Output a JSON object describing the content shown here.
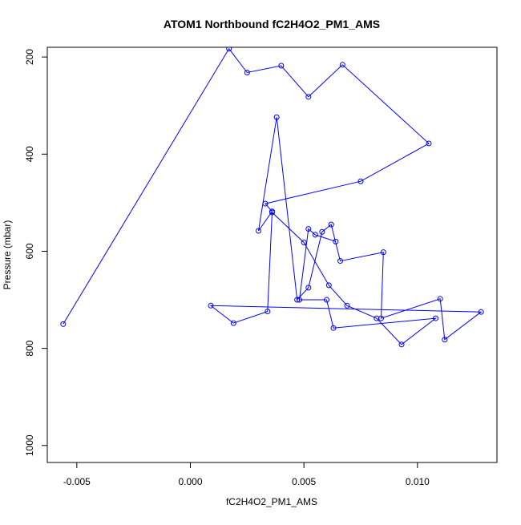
{
  "chart_data": {
    "type": "line",
    "title": "ATOM1 Northbound fC2H4O2_PM1_AMS",
    "xlabel": "fC2H4O2_PM1_AMS",
    "ylabel": "Pressure (mbar)",
    "xlim": [
      -0.0063,
      0.0135
    ],
    "ylim": [
      1035,
      180
    ],
    "y_reversed": true,
    "x_ticks": [
      -0.005,
      0.0,
      0.005,
      0.01
    ],
    "x_tick_labels": [
      "-0.005",
      "0.000",
      "0.005",
      "0.010"
    ],
    "y_ticks": [
      200,
      400,
      600,
      800,
      1000
    ],
    "y_tick_labels": [
      "200",
      "400",
      "600",
      "800",
      "1000"
    ],
    "grid": false,
    "series": [
      {
        "color": "#0000ff",
        "marker": "open-circle",
        "x": [
          -0.0056,
          0.0017,
          0.0025,
          0.004,
          0.0052,
          0.0067,
          0.0105,
          0.0075,
          0.0033,
          0.0036,
          0.003,
          0.0038,
          0.0047,
          0.0052,
          0.0058,
          0.0062,
          0.0066,
          0.0085,
          0.0084,
          0.011,
          0.0112,
          0.0128,
          0.0009,
          0.0019,
          0.0034,
          0.0036,
          0.005,
          0.0061,
          0.0069,
          0.0082,
          0.0093,
          0.0108,
          0.0063,
          0.006,
          0.0048,
          0.0052,
          0.0055,
          0.0064
        ],
        "y": [
          750,
          183,
          232,
          218,
          282,
          216,
          378,
          456,
          502,
          518,
          558,
          324,
          700,
          675,
          560,
          545,
          620,
          602,
          738,
          698,
          782,
          725,
          712,
          748,
          724,
          520,
          582,
          670,
          712,
          738,
          792,
          738,
          758,
          700,
          700,
          554,
          566,
          580
        ]
      }
    ]
  }
}
